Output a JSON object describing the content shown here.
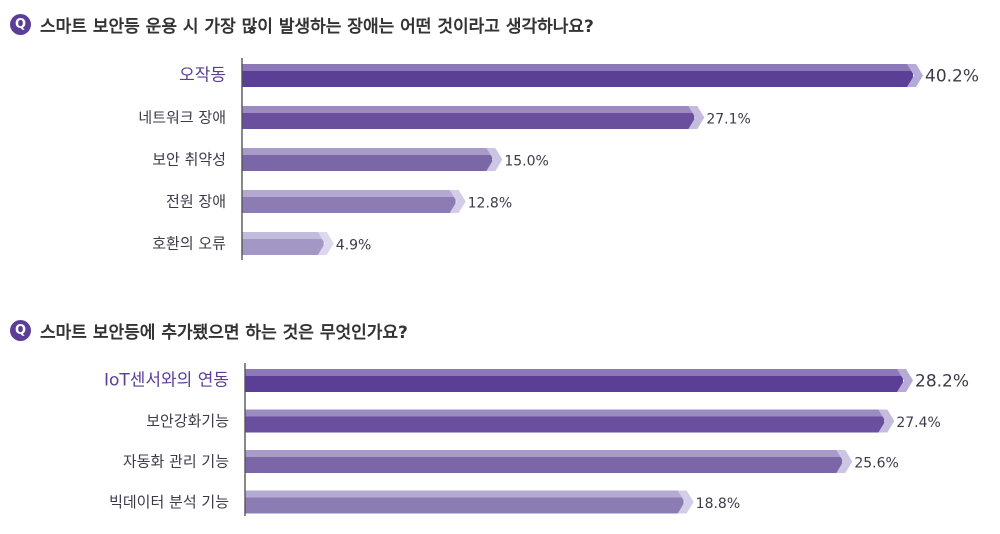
{
  "questions": [
    {
      "badge": "Q",
      "text": "스마트 보안등 운용 시 가장 많이 발생하는 장애는 어떤 것이라고 생각하나요?"
    },
    {
      "badge": "Q",
      "text": "스마트 보안등에 추가됐으면 하는 것은 무엇인가요?"
    }
  ],
  "colors": {
    "badge": "#5b3f96",
    "highlight_label": "#5b3f96",
    "bars": [
      "#5b3f96",
      "#6a4f9f",
      "#7b67a8",
      "#8d7cb4",
      "#a398c5"
    ],
    "bar_caps": [
      "#b6aad6",
      "#c4bbdf",
      "#cdc5e4",
      "#d4cde9",
      "#ddd8ee"
    ]
  },
  "chart_data": [
    {
      "type": "bar",
      "orientation": "horizontal",
      "categories": [
        "오작동",
        "네트워크 장애",
        "보안 취약성",
        "전원 장애",
        "호환의 오류"
      ],
      "values": [
        40.2,
        27.1,
        15.0,
        12.8,
        4.9
      ],
      "value_labels": [
        "40.2%",
        "27.1%",
        "15.0%",
        "12.8%",
        "4.9%"
      ],
      "highlight_index": 0,
      "xlim": [
        0,
        40.2
      ]
    },
    {
      "type": "bar",
      "orientation": "horizontal",
      "categories": [
        "IoT센서와의 연동",
        "보안강화기능",
        "자동화 관리 기능",
        "빅데이터 분석 기능"
      ],
      "values": [
        28.2,
        27.4,
        25.6,
        18.8
      ],
      "value_labels": [
        "28.2%",
        "27.4%",
        "25.6%",
        "18.8%"
      ],
      "highlight_index": 0,
      "xlim": [
        0,
        28.2
      ]
    }
  ]
}
